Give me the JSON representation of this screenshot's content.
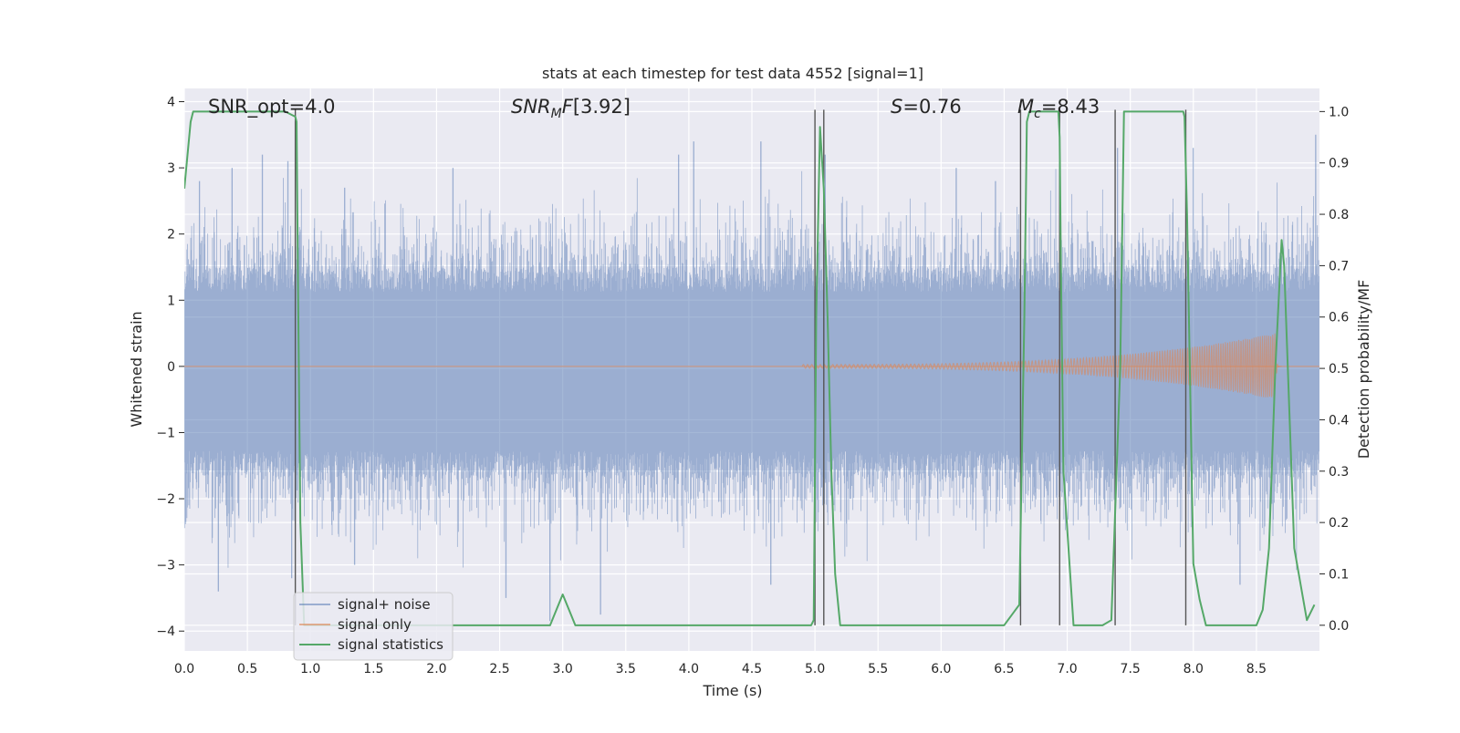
{
  "chart_data": {
    "type": "line",
    "title": "stats at each timestep for test data 4552 [signal=1]",
    "xlabel": "Time (s)",
    "ylabel_left": "Whitened strain",
    "ylabel_right": "Detection probability/MF",
    "xlim": [
      0,
      9
    ],
    "ylim_left": [
      -4.3,
      4.2
    ],
    "ylim_right": [
      -0.05,
      1.045
    ],
    "x_ticks": [
      "0.0",
      "0.5",
      "1.0",
      "1.5",
      "2.0",
      "2.5",
      "3.0",
      "3.5",
      "4.0",
      "4.5",
      "5.0",
      "5.5",
      "6.0",
      "6.5",
      "7.0",
      "7.5",
      "8.0",
      "8.5"
    ],
    "y_ticks_left": [
      "−4",
      "−3",
      "−2",
      "−1",
      "0",
      "1",
      "2",
      "3",
      "4"
    ],
    "y_ticks_right": [
      "0.0",
      "0.1",
      "0.2",
      "0.3",
      "0.4",
      "0.5",
      "0.6",
      "0.7",
      "0.8",
      "0.9",
      "1.0"
    ],
    "grid": true,
    "legend_position": "lower-left",
    "annotations": {
      "snr_opt": "SNR_opt=4.0",
      "snr_mf": "[3.92]",
      "s_stat": "=0.76",
      "mc": "=8.43"
    },
    "series": [
      {
        "name": "signal+ noise",
        "color": "#4c72b0",
        "kind": "noise",
        "typical_band": [
          -1.7,
          1.5
        ],
        "peaks": [
          {
            "x": 0.12,
            "y": 2.8
          },
          {
            "x": 0.27,
            "y": -3.4
          },
          {
            "x": 0.38,
            "y": 3.0
          },
          {
            "x": 0.62,
            "y": 3.2
          },
          {
            "x": 0.82,
            "y": 3.1
          },
          {
            "x": 0.85,
            "y": -3.2
          },
          {
            "x": 1.27,
            "y": 2.7
          },
          {
            "x": 1.35,
            "y": -3.0
          },
          {
            "x": 2.13,
            "y": 3.0
          },
          {
            "x": 2.55,
            "y": -3.5
          },
          {
            "x": 2.9,
            "y": -3.85
          },
          {
            "x": 3.3,
            "y": -3.75
          },
          {
            "x": 3.92,
            "y": 3.2
          },
          {
            "x": 4.04,
            "y": 3.4
          },
          {
            "x": 4.57,
            "y": 3.4
          },
          {
            "x": 4.65,
            "y": -3.3
          },
          {
            "x": 5.08,
            "y": 3.2
          },
          {
            "x": 6.12,
            "y": 3.0
          },
          {
            "x": 6.43,
            "y": 2.8
          },
          {
            "x": 7.4,
            "y": 3.3
          },
          {
            "x": 8.0,
            "y": 3.3
          },
          {
            "x": 8.37,
            "y": -3.3
          },
          {
            "x": 8.97,
            "y": 3.5
          }
        ]
      },
      {
        "name": "signal only",
        "color": "#dd8452",
        "kind": "chirp",
        "start": 4.9,
        "merger": 8.65,
        "amplitude_at_start": 0.03,
        "amplitude_at_merger": 0.5
      },
      {
        "name": "signal statistics",
        "color": "#55a868",
        "axis": "right",
        "x": [
          0.0,
          0.05,
          0.07,
          0.1,
          0.2,
          0.3,
          0.4,
          0.5,
          0.6,
          0.7,
          0.8,
          0.88,
          0.89,
          0.9,
          0.92,
          0.95,
          1.05,
          2.9,
          2.95,
          3.0,
          3.05,
          3.1,
          4.9,
          4.97,
          4.99,
          5.01,
          5.04,
          5.07,
          5.1,
          5.13,
          5.16,
          5.2,
          5.3,
          6.5,
          6.56,
          6.62,
          6.66,
          6.68,
          6.7,
          6.75,
          6.9,
          6.93,
          6.94,
          6.95,
          6.97,
          7.05,
          7.25,
          7.28,
          7.35,
          7.42,
          7.45,
          7.9,
          7.92,
          7.93,
          7.95,
          8.0,
          8.05,
          8.1,
          8.3,
          8.5,
          8.55,
          8.6,
          8.65,
          8.7,
          8.72,
          8.8,
          8.85,
          8.9,
          8.96
        ],
        "y": [
          0.85,
          0.98,
          1.0,
          1.0,
          1.0,
          1.0,
          1.0,
          1.0,
          1.0,
          1.0,
          1.0,
          0.99,
          0.98,
          0.7,
          0.2,
          0.0,
          0.0,
          0.0,
          0.03,
          0.06,
          0.03,
          0.0,
          0.0,
          0.0,
          0.01,
          0.6,
          0.97,
          0.85,
          0.6,
          0.3,
          0.1,
          0.0,
          0.0,
          0.0,
          0.02,
          0.04,
          0.6,
          0.98,
          1.0,
          1.0,
          1.0,
          1.0,
          0.95,
          0.7,
          0.3,
          0.0,
          0.0,
          0.0,
          0.01,
          0.5,
          1.0,
          1.0,
          1.0,
          0.99,
          0.8,
          0.12,
          0.05,
          0.0,
          0.0,
          0.0,
          0.03,
          0.15,
          0.5,
          0.75,
          0.7,
          0.15,
          0.08,
          0.01,
          0.04
        ]
      }
    ],
    "threshold_crossings": [
      0.88,
      5.0,
      5.07,
      6.63,
      6.94,
      7.38,
      7.94
    ]
  }
}
